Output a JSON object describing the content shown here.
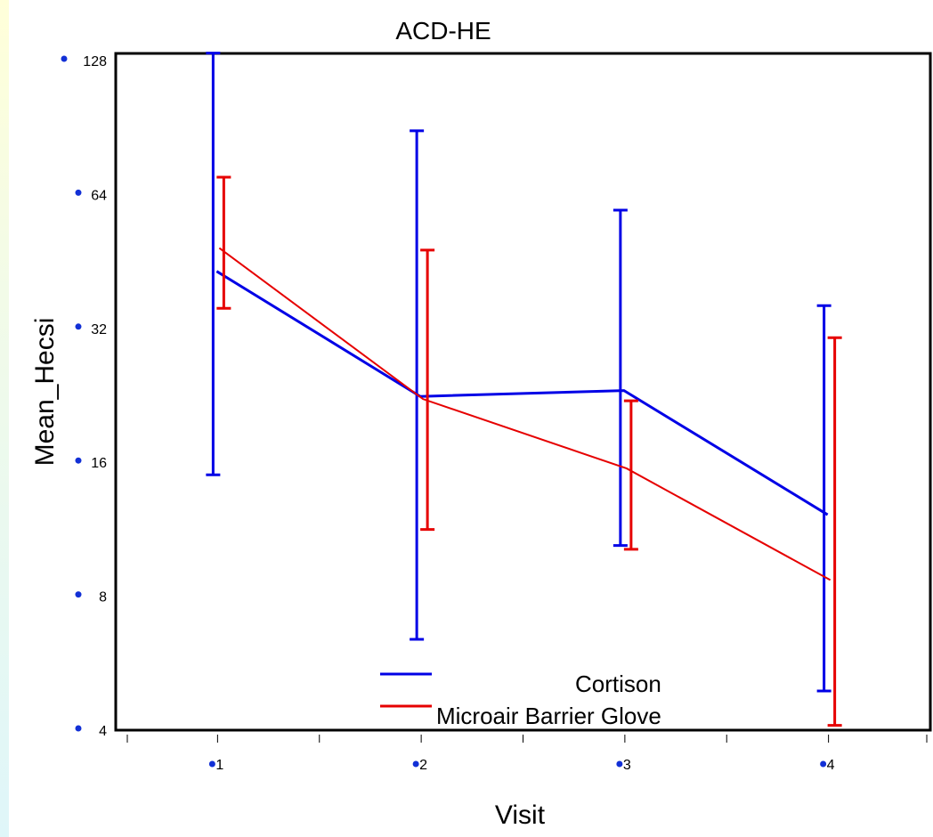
{
  "chart_data": {
    "type": "line",
    "title": "ACD-HE",
    "xlabel": "Visit",
    "ylabel": "Mean_Hecsi",
    "y_scale": "log2",
    "ylim": [
      4,
      128
    ],
    "yticks": [
      {
        "value": 4,
        "label": "4"
      },
      {
        "value": 8,
        "label": "8"
      },
      {
        "value": 16,
        "label": "16"
      },
      {
        "value": 32,
        "label": "32"
      },
      {
        "value": 64,
        "label": "64"
      },
      {
        "value": 128,
        "label": "128"
      }
    ],
    "x": [
      1,
      2,
      3,
      4
    ],
    "xticks": [
      {
        "value": 1,
        "label": "1"
      },
      {
        "value": 2,
        "label": "2"
      },
      {
        "value": 3,
        "label": "3"
      },
      {
        "value": 4,
        "label": "4"
      }
    ],
    "xlim": [
      0.5,
      4.5
    ],
    "legend_position": "bottom-center",
    "series": [
      {
        "name": "Cortison",
        "color": "#0000e6",
        "values": [
          43,
          22.5,
          23.2,
          12.2
        ],
        "error_low": [
          15,
          6.4,
          10.4,
          4.9
        ],
        "error_high": [
          133,
          89,
          59,
          36
        ]
      },
      {
        "name": "Microair Barrier Glove",
        "color": "#e60000",
        "values": [
          48.5,
          22.2,
          15.5,
          8.7
        ],
        "error_low": [
          35.5,
          11.3,
          10.2,
          4.1
        ],
        "error_high": [
          70,
          48,
          22,
          30.5
        ]
      }
    ]
  }
}
